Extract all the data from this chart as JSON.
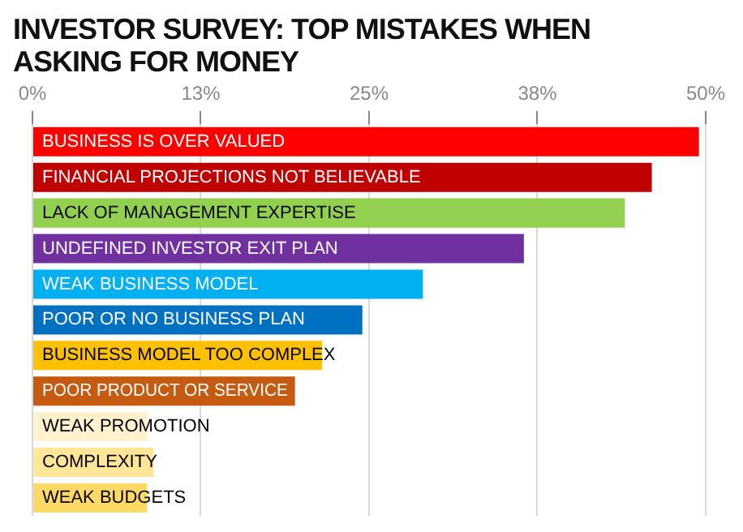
{
  "chart_data": {
    "type": "bar",
    "orientation": "horizontal",
    "title": "INVESTOR SURVEY: TOP MISTAKES WHEN ASKING FOR MONEY",
    "categories": [
      "BUSINESS IS OVER VALUED",
      "FINANCIAL PROJECTIONS NOT BELIEVABLE",
      "LACK OF MANAGEMENT EXPERTISE",
      "UNDEFINED INVESTOR EXIT PLAN",
      "WEAK BUSINESS MODEL",
      "POOR OR NO BUSINESS PLAN",
      "BUSINESS MODEL TOO COMPLEX",
      "POOR PRODUCT OR SERVICE",
      "WEAK PROMOTION",
      "COMPLEXITY",
      "WEAK BUDGETS"
    ],
    "values": [
      49.5,
      46,
      44,
      36.5,
      29,
      24.5,
      21.5,
      19.5,
      8.5,
      9,
      8.5
    ],
    "colors": [
      "#ff0000",
      "#c00000",
      "#92d050",
      "#7030a0",
      "#00b0f0",
      "#0070c0",
      "#ffc000",
      "#c55a11",
      "#fff2cc",
      "#ffe699",
      "#ffd966"
    ],
    "xlim": [
      0,
      50
    ],
    "xticks": [
      {
        "value": 0,
        "label": "0%"
      },
      {
        "value": 12.5,
        "label": "13%"
      },
      {
        "value": 25,
        "label": "25%"
      },
      {
        "value": 37.5,
        "label": "38%"
      },
      {
        "value": 50,
        "label": "50%"
      }
    ],
    "grid": "x",
    "tick_labels": "x",
    "legend": false
  }
}
